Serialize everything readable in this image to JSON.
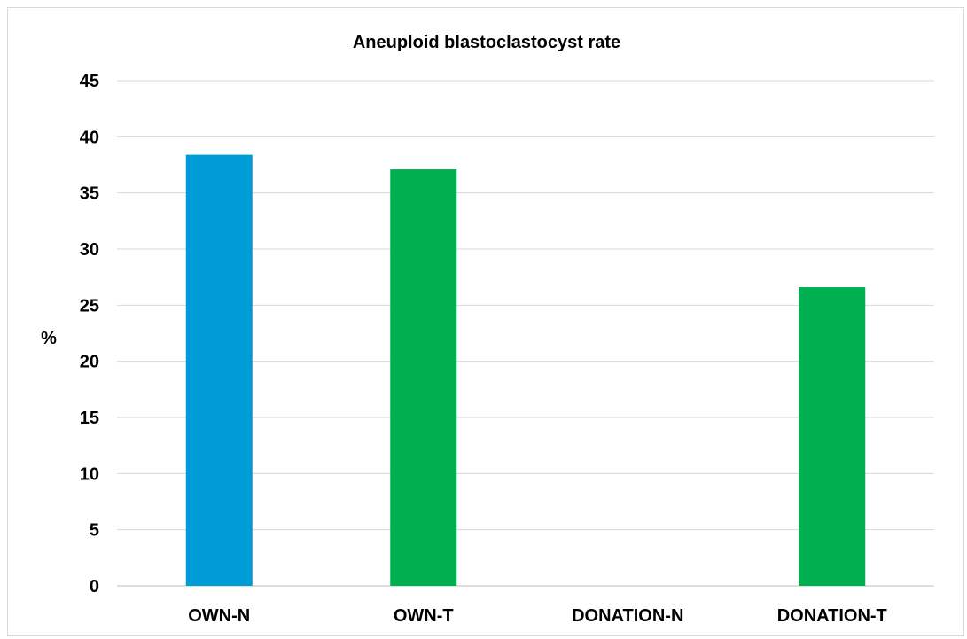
{
  "chart_data": {
    "type": "bar",
    "title": "Aneuploid blastoclastocyst rate",
    "xlabel": "",
    "ylabel": "%",
    "categories": [
      "OWN-N",
      "OWN-T",
      "DONATION-N",
      "DONATION-T"
    ],
    "values": [
      38.4,
      37.1,
      0,
      26.6
    ],
    "bar_colors": [
      "#009cd6",
      "#00b050",
      "#00b050",
      "#00b050"
    ],
    "ylim": [
      0,
      45
    ],
    "yticks": [
      0,
      5,
      10,
      15,
      20,
      25,
      30,
      35,
      40,
      45
    ],
    "grid": true,
    "legend": "none"
  }
}
